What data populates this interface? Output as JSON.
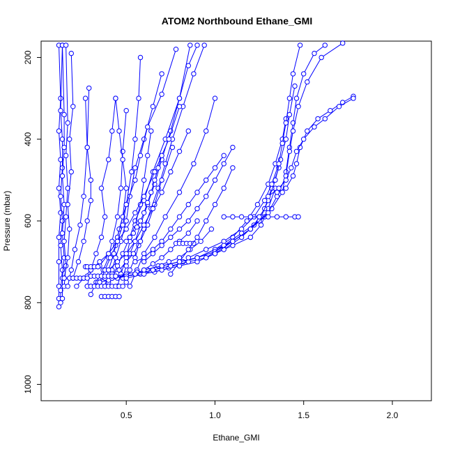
{
  "chart_data": {
    "type": "line",
    "title": "ATOM2 Northbound Ethane_GMI",
    "xlabel": "Ethane_GMI",
    "ylabel": "Pressure (mbar)",
    "xlim": [
      0.02,
      2.22
    ],
    "ylim": [
      1040,
      160
    ],
    "y_inverted": true,
    "x_ticks": [
      0.5,
      1.0,
      1.5,
      2.0
    ],
    "x_tick_labels": [
      "0.5",
      "1.0",
      "1.5",
      "2.0"
    ],
    "y_ticks": [
      200,
      400,
      600,
      800,
      1000
    ],
    "y_tick_labels": [
      "200",
      "400",
      "600",
      "800",
      "1000"
    ],
    "series_color": "#0000ff",
    "marker": "open-circle",
    "grid": false,
    "legend": "none",
    "series": [
      {
        "x": [
          0.12,
          0.12,
          0.12,
          0.12,
          0.12,
          0.13,
          0.12,
          0.13,
          0.12,
          0.13,
          0.12
        ],
        "y": [
          810,
          790,
          760,
          700,
          640,
          580,
          520,
          450,
          380,
          300,
          170
        ]
      },
      {
        "x": [
          0.13,
          0.13,
          0.14,
          0.13,
          0.14,
          0.13,
          0.14,
          0.14,
          0.13,
          0.14
        ],
        "y": [
          800,
          770,
          720,
          660,
          600,
          540,
          470,
          400,
          330,
          170
        ]
      },
      {
        "x": [
          0.14,
          0.14,
          0.15,
          0.14,
          0.15,
          0.14,
          0.15,
          0.15,
          0.14
        ],
        "y": [
          790,
          740,
          690,
          630,
          560,
          490,
          420,
          340,
          170
        ]
      },
      {
        "x": [
          0.15,
          0.16,
          0.15,
          0.16,
          0.17,
          0.16,
          0.17,
          0.16
        ],
        "y": [
          760,
          710,
          650,
          590,
          520,
          440,
          360,
          170
        ]
      },
      {
        "x": [
          0.15,
          0.17,
          0.18,
          0.17,
          0.19,
          0.18,
          0.2,
          0.19
        ],
        "y": [
          740,
          690,
          620,
          560,
          480,
          400,
          320,
          190
        ]
      },
      {
        "x": [
          0.17,
          0.19,
          0.21,
          0.24,
          0.26,
          0.28,
          0.29
        ],
        "y": [
          760,
          720,
          670,
          610,
          540,
          420,
          275
        ]
      },
      {
        "x": [
          0.2,
          0.23,
          0.26,
          0.28,
          0.3,
          0.3,
          0.28,
          0.27
        ],
        "y": [
          740,
          700,
          650,
          600,
          550,
          500,
          420,
          300
        ]
      },
      {
        "x": [
          0.28,
          0.3,
          0.33,
          0.36,
          0.38,
          0.36,
          0.4,
          0.42,
          0.44
        ],
        "y": [
          760,
          720,
          680,
          640,
          590,
          520,
          450,
          380,
          300
        ]
      },
      {
        "x": [
          0.3,
          0.33,
          0.37,
          0.4,
          0.42,
          0.45,
          0.47,
          0.48,
          0.5
        ],
        "y": [
          780,
          750,
          720,
          690,
          650,
          590,
          520,
          430,
          330
        ]
      },
      {
        "x": [
          0.35,
          0.38,
          0.41,
          0.44,
          0.46,
          0.5,
          0.53,
          0.55,
          0.57,
          0.58
        ],
        "y": [
          750,
          720,
          690,
          660,
          620,
          560,
          480,
          400,
          300,
          200
        ]
      },
      {
        "x": [
          0.38,
          0.4,
          0.43,
          0.45,
          0.48,
          0.5,
          0.48,
          0.46,
          0.44
        ],
        "y": [
          760,
          720,
          680,
          640,
          590,
          520,
          450,
          380,
          300
        ]
      },
      {
        "x": [
          0.4,
          0.42,
          0.44,
          0.47,
          0.5,
          0.52,
          0.55,
          0.6,
          0.65,
          0.7
        ],
        "y": [
          750,
          720,
          690,
          650,
          600,
          540,
          470,
          400,
          320,
          240
        ]
      },
      {
        "x": [
          0.42,
          0.45,
          0.48,
          0.52,
          0.55,
          0.6,
          0.65,
          0.72,
          0.8,
          0.86
        ],
        "y": [
          740,
          710,
          680,
          640,
          600,
          550,
          480,
          400,
          300,
          170
        ]
      },
      {
        "x": [
          0.45,
          0.47,
          0.5,
          0.52,
          0.55,
          0.58,
          0.6,
          0.62,
          0.64
        ],
        "y": [
          760,
          730,
          690,
          650,
          610,
          560,
          500,
          440,
          380
        ]
      },
      {
        "x": [
          0.48,
          0.5,
          0.52,
          0.55,
          0.58,
          0.62,
          0.66,
          0.7,
          0.75,
          0.8,
          0.85,
          0.9
        ],
        "y": [
          740,
          710,
          680,
          650,
          610,
          560,
          510,
          450,
          380,
          300,
          220,
          170
        ]
      },
      {
        "x": [
          0.5,
          0.52,
          0.55,
          0.57,
          0.6,
          0.64,
          0.68,
          0.72,
          0.76,
          0.82,
          0.88,
          0.94
        ],
        "y": [
          750,
          720,
          690,
          660,
          620,
          570,
          520,
          460,
          400,
          320,
          240,
          170
        ]
      },
      {
        "x": [
          0.52,
          0.56,
          0.6,
          0.66,
          0.72,
          0.8,
          0.88,
          0.95,
          1.0
        ],
        "y": [
          760,
          720,
          680,
          640,
          590,
          530,
          460,
          380,
          300
        ]
      },
      {
        "x": [
          0.35,
          0.4,
          0.45,
          0.48,
          0.5,
          0.55,
          0.58,
          0.62,
          0.7,
          0.78
        ],
        "y": [
          710,
          680,
          650,
          610,
          560,
          500,
          440,
          370,
          290,
          180
        ]
      },
      {
        "x": [
          0.22,
          0.26,
          0.3,
          0.35,
          0.4,
          0.45,
          0.5,
          0.55,
          0.6,
          0.66,
          0.74,
          0.8
        ],
        "y": [
          760,
          740,
          720,
          700,
          680,
          650,
          620,
          580,
          540,
          480,
          400,
          320
        ]
      },
      {
        "x": [
          0.3,
          0.34,
          0.38,
          0.42,
          0.46,
          0.5,
          0.54,
          0.58,
          0.62,
          0.66,
          0.7,
          0.76
        ],
        "y": [
          760,
          750,
          740,
          730,
          720,
          700,
          680,
          650,
          610,
          560,
          500,
          420
        ]
      },
      {
        "x": [
          0.35,
          0.4,
          0.45,
          0.5,
          0.55,
          0.6,
          0.65,
          0.7,
          0.75,
          0.8,
          0.85,
          0.9
        ],
        "y": [
          750,
          745,
          740,
          735,
          730,
          720,
          705,
          690,
          670,
          650,
          630,
          600
        ]
      },
      {
        "x": [
          0.38,
          0.44,
          0.5,
          0.56,
          0.62,
          0.68,
          0.74,
          0.8,
          0.86,
          0.92,
          0.98
        ],
        "y": [
          740,
          735,
          730,
          725,
          720,
          710,
          700,
          690,
          670,
          650,
          620
        ]
      },
      {
        "x": [
          0.42,
          0.5,
          0.58,
          0.66,
          0.74,
          0.82,
          0.9,
          1.0,
          1.1,
          1.2,
          1.28
        ],
        "y": [
          740,
          735,
          730,
          725,
          715,
          700,
          690,
          670,
          650,
          620,
          590
        ]
      },
      {
        "x": [
          0.5,
          0.6,
          0.7,
          0.8,
          0.9,
          1.0,
          1.1,
          1.2,
          1.26,
          1.3,
          1.34
        ],
        "y": [
          740,
          730,
          720,
          710,
          700,
          680,
          660,
          640,
          610,
          570,
          520
        ]
      },
      {
        "x": [
          0.55,
          0.65,
          0.75,
          0.85,
          0.95,
          1.05,
          1.15,
          1.22,
          1.28,
          1.32,
          1.36
        ],
        "y": [
          730,
          720,
          710,
          700,
          690,
          670,
          640,
          610,
          570,
          520,
          470
        ]
      },
      {
        "x": [
          0.6,
          0.7,
          0.8,
          0.9,
          1.0,
          1.1,
          1.18,
          1.24,
          1.3,
          1.34,
          1.38,
          1.4
        ],
        "y": [
          720,
          710,
          700,
          690,
          670,
          640,
          600,
          560,
          510,
          460,
          400,
          350
        ]
      },
      {
        "x": [
          0.7,
          0.8,
          0.9,
          1.0,
          1.1,
          1.2,
          1.26,
          1.3,
          1.34,
          1.37,
          1.4,
          1.42,
          1.45
        ],
        "y": [
          710,
          700,
          690,
          675,
          650,
          620,
          590,
          550,
          500,
          450,
          400,
          340,
          270
        ]
      },
      {
        "x": [
          0.85,
          0.95,
          1.05,
          1.15,
          1.22,
          1.28,
          1.32,
          1.36,
          1.38,
          1.4,
          1.42,
          1.44,
          1.48
        ],
        "y": [
          690,
          670,
          650,
          620,
          590,
          550,
          510,
          460,
          410,
          360,
          300,
          240,
          170
        ]
      },
      {
        "x": [
          0.95,
          1.05,
          1.15,
          1.25,
          1.32,
          1.38,
          1.4,
          1.42,
          1.44,
          1.46,
          1.5,
          1.56,
          1.62
        ],
        "y": [
          690,
          660,
          630,
          600,
          570,
          530,
          480,
          420,
          360,
          300,
          240,
          190,
          170
        ]
      },
      {
        "x": [
          1.0,
          1.1,
          1.2,
          1.3,
          1.35,
          1.4,
          1.42,
          1.44,
          1.47,
          1.52,
          1.6,
          1.72
        ],
        "y": [
          680,
          650,
          620,
          580,
          540,
          490,
          430,
          380,
          320,
          260,
          200,
          165
        ]
      },
      {
        "x": [
          1.35,
          1.4,
          1.44,
          1.46,
          1.48,
          1.52,
          1.58,
          1.65,
          1.72,
          1.78
        ],
        "y": [
          530,
          520,
          490,
          460,
          420,
          380,
          350,
          330,
          310,
          295
        ]
      },
      {
        "x": [
          1.3,
          1.36,
          1.4,
          1.43,
          1.46,
          1.5,
          1.56,
          1.62,
          1.7,
          1.78
        ],
        "y": [
          540,
          520,
          500,
          470,
          430,
          400,
          370,
          350,
          320,
          300
        ]
      },
      {
        "x": [
          1.2,
          1.25,
          1.3,
          1.35,
          1.4,
          1.45,
          1.47
        ],
        "y": [
          590,
          590,
          590,
          590,
          590,
          590,
          590
        ]
      },
      {
        "x": [
          1.05,
          1.1,
          1.15,
          1.2,
          1.25
        ],
        "y": [
          590,
          590,
          590,
          590,
          590
        ]
      },
      {
        "x": [
          0.78,
          0.8,
          0.82,
          0.84,
          0.86,
          0.88
        ],
        "y": [
          655,
          655,
          655,
          655,
          655,
          655
        ]
      },
      {
        "x": [
          0.28,
          0.3,
          0.32,
          0.34,
          0.36,
          0.38,
          0.4,
          0.42,
          0.44
        ],
        "y": [
          735,
          735,
          735,
          735,
          735,
          735,
          735,
          735,
          735
        ]
      },
      {
        "x": [
          0.15,
          0.18,
          0.2,
          0.22,
          0.24,
          0.26,
          0.28
        ],
        "y": [
          740,
          740,
          740,
          740,
          740,
          740,
          740
        ]
      },
      {
        "x": [
          0.28,
          0.3,
          0.32,
          0.34,
          0.36,
          0.38,
          0.4,
          0.42,
          0.44,
          0.46,
          0.48
        ],
        "y": [
          760,
          760,
          760,
          760,
          760,
          760,
          760,
          760,
          760,
          760,
          760
        ]
      },
      {
        "x": [
          0.36,
          0.38,
          0.4,
          0.42,
          0.44,
          0.46
        ],
        "y": [
          785,
          785,
          785,
          785,
          785,
          785
        ]
      },
      {
        "x": [
          0.27,
          0.28,
          0.3,
          0.32,
          0.34
        ],
        "y": [
          712,
          712,
          712,
          712,
          712
        ]
      },
      {
        "x": [
          0.5,
          0.52,
          0.54,
          0.56,
          0.58,
          0.6,
          0.62,
          0.64,
          0.66,
          0.68,
          0.7
        ],
        "y": [
          650,
          640,
          630,
          615,
          600,
          580,
          555,
          530,
          500,
          470,
          440
        ]
      },
      {
        "x": [
          0.55,
          0.6,
          0.65,
          0.7,
          0.75,
          0.8,
          0.85,
          0.9,
          0.95,
          1.0,
          1.05
        ],
        "y": [
          700,
          690,
          670,
          650,
          620,
          590,
          560,
          530,
          500,
          470,
          440
        ]
      },
      {
        "x": [
          0.4,
          0.45,
          0.5,
          0.55,
          0.6,
          0.65,
          0.7,
          0.75,
          0.8,
          0.85
        ],
        "y": [
          720,
          700,
          680,
          650,
          610,
          570,
          530,
          480,
          430,
          380
        ]
      },
      {
        "x": [
          0.6,
          0.65,
          0.7,
          0.75,
          0.8,
          0.85,
          0.9,
          0.95,
          1.0,
          1.05,
          1.1
        ],
        "y": [
          700,
          680,
          660,
          640,
          620,
          600,
          570,
          540,
          500,
          460,
          420
        ]
      },
      {
        "x": [
          0.75,
          0.8,
          0.85,
          0.9,
          0.95,
          1.0,
          1.05,
          1.1
        ],
        "y": [
          730,
          700,
          670,
          640,
          600,
          560,
          520,
          470
        ]
      }
    ]
  }
}
